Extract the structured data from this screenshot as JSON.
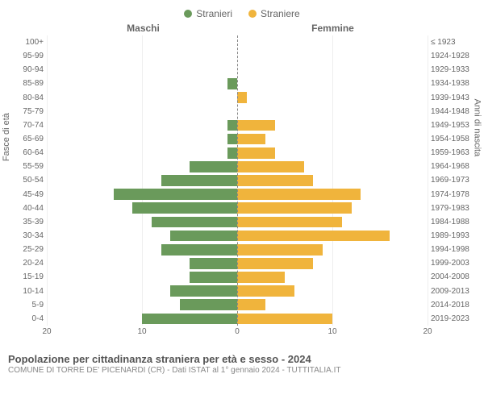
{
  "legend": {
    "male": "Stranieri",
    "female": "Straniere"
  },
  "columns": {
    "left": "Maschi",
    "right": "Femmine"
  },
  "axes": {
    "left_label": "Fasce di età",
    "right_label": "Anni di nascita",
    "x_max": 20,
    "x_ticks": [
      20,
      10,
      0,
      10,
      20
    ]
  },
  "colors": {
    "male": "#6a9a5b",
    "female": "#f0b43c",
    "grid": "#eeeeee",
    "text": "#666666",
    "background": "#ffffff"
  },
  "rows": [
    {
      "age": "100+",
      "year": "≤ 1923",
      "m": 0,
      "f": 0
    },
    {
      "age": "95-99",
      "year": "1924-1928",
      "m": 0,
      "f": 0
    },
    {
      "age": "90-94",
      "year": "1929-1933",
      "m": 0,
      "f": 0
    },
    {
      "age": "85-89",
      "year": "1934-1938",
      "m": 1,
      "f": 0
    },
    {
      "age": "80-84",
      "year": "1939-1943",
      "m": 0,
      "f": 1
    },
    {
      "age": "75-79",
      "year": "1944-1948",
      "m": 0,
      "f": 0
    },
    {
      "age": "70-74",
      "year": "1949-1953",
      "m": 1,
      "f": 4
    },
    {
      "age": "65-69",
      "year": "1954-1958",
      "m": 1,
      "f": 3
    },
    {
      "age": "60-64",
      "year": "1959-1963",
      "m": 1,
      "f": 4
    },
    {
      "age": "55-59",
      "year": "1964-1968",
      "m": 5,
      "f": 7
    },
    {
      "age": "50-54",
      "year": "1969-1973",
      "m": 8,
      "f": 8
    },
    {
      "age": "45-49",
      "year": "1974-1978",
      "m": 13,
      "f": 13
    },
    {
      "age": "40-44",
      "year": "1979-1983",
      "m": 11,
      "f": 12
    },
    {
      "age": "35-39",
      "year": "1984-1988",
      "m": 9,
      "f": 11
    },
    {
      "age": "30-34",
      "year": "1989-1993",
      "m": 7,
      "f": 16
    },
    {
      "age": "25-29",
      "year": "1994-1998",
      "m": 8,
      "f": 9
    },
    {
      "age": "20-24",
      "year": "1999-2003",
      "m": 5,
      "f": 8
    },
    {
      "age": "15-19",
      "year": "2004-2008",
      "m": 5,
      "f": 5
    },
    {
      "age": "10-14",
      "year": "2009-2013",
      "m": 7,
      "f": 6
    },
    {
      "age": "5-9",
      "year": "2014-2018",
      "m": 6,
      "f": 3
    },
    {
      "age": "0-4",
      "year": "2019-2023",
      "m": 10,
      "f": 10
    }
  ],
  "footer": {
    "title": "Popolazione per cittadinanza straniera per età e sesso - 2024",
    "subtitle": "COMUNE DI TORRE DE' PICENARDI (CR) - Dati ISTAT al 1° gennaio 2024 - TUTTITALIA.IT"
  }
}
